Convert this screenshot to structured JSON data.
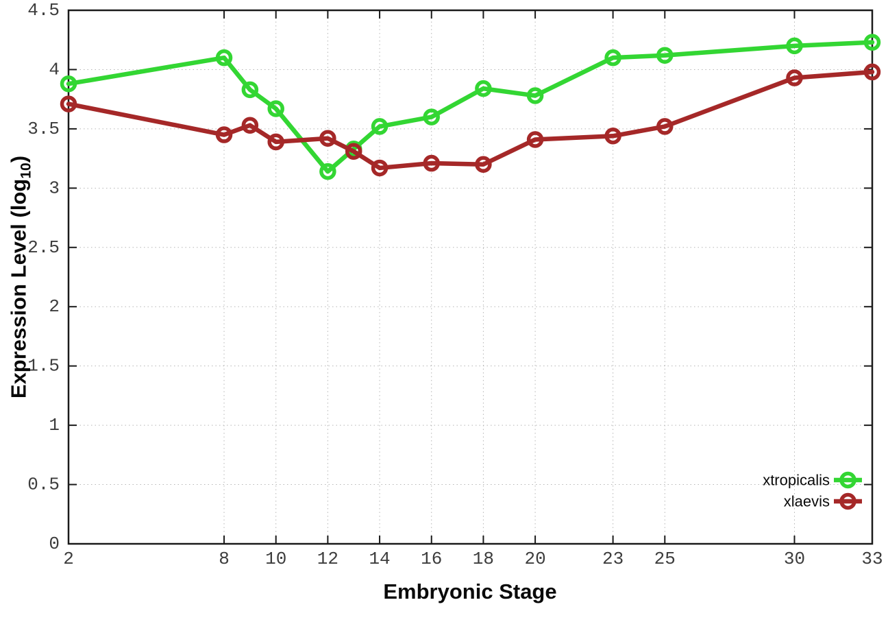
{
  "chart_data": {
    "type": "line",
    "title": "",
    "xlabel": "Embryonic Stage",
    "ylabel": "Expression Level (log10)",
    "ylabel_parts": {
      "pre": "Expression Level (log",
      "sub": "10",
      "post": ")"
    },
    "x": [
      2,
      8,
      9,
      10,
      12,
      13,
      14,
      16,
      18,
      20,
      23,
      25,
      30,
      33
    ],
    "series": [
      {
        "name": "xtropicalis",
        "color": "#33d633",
        "values": [
          3.88,
          4.1,
          3.83,
          3.67,
          3.14,
          3.33,
          3.52,
          3.6,
          3.84,
          3.78,
          4.1,
          4.12,
          4.2,
          4.23
        ]
      },
      {
        "name": "xlaevis",
        "color": "#a52828",
        "values": [
          3.71,
          3.45,
          3.53,
          3.39,
          3.42,
          3.31,
          3.17,
          3.21,
          3.2,
          3.41,
          3.44,
          3.52,
          3.93,
          3.98
        ]
      }
    ],
    "xlim": [
      2,
      33
    ],
    "ylim": [
      0,
      4.5
    ],
    "xticks": [
      2,
      8,
      10,
      12,
      14,
      16,
      18,
      20,
      23,
      25,
      30,
      33
    ],
    "yticks": [
      0,
      0.5,
      1,
      1.5,
      2,
      2.5,
      3,
      3.5,
      4,
      4.5
    ],
    "grid": true,
    "grid_style": "dotted",
    "legend_position": "inside-right-bottom",
    "marker": "open-circle",
    "background_color": "#ffffff",
    "border_color": "#1a1a1a",
    "grid_color": "#b5b5b5",
    "tick_label_color": "#3d3d3d"
  }
}
